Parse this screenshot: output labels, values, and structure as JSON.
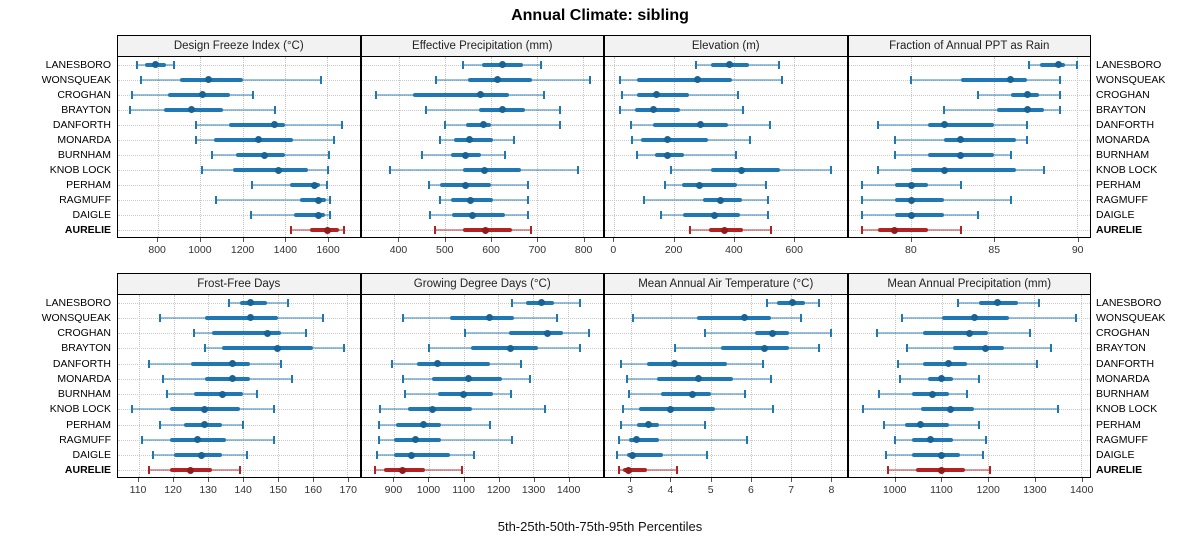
{
  "chart_data": {
    "type": "dot-interval",
    "title": "Annual Climate: sibling",
    "caption": "5th-25th-50th-75th-95th Percentiles",
    "legend_note": "each row shows 5th, 25th, 50th, 75th, 95th percentiles",
    "sites": [
      "LANESBORO",
      "WONSQUEAK",
      "CROGHAN",
      "BRAYTON",
      "DANFORTH",
      "MONARDA",
      "BURNHAM",
      "KNOB LOCK",
      "PERHAM",
      "RAGMUFF",
      "DAIGLE",
      "AURELIE"
    ],
    "emphasis_site": "AURELIE",
    "colors": {
      "series": "#1f77b4",
      "emphasis": "#b22222"
    },
    "grid": true,
    "panels": [
      {
        "title": "Design Freeze Index (°C)",
        "range": [
          612,
          1752
        ],
        "ticks": [
          800,
          1000,
          1200,
          1400,
          1600
        ],
        "values": [
          [
            700,
            740,
            790,
            840,
            875
          ],
          [
            720,
            905,
            1040,
            1200,
            1570
          ],
          [
            680,
            850,
            1010,
            1140,
            1250
          ],
          [
            670,
            830,
            960,
            1110,
            1355
          ],
          [
            980,
            1135,
            1350,
            1400,
            1670
          ],
          [
            980,
            1065,
            1275,
            1440,
            1630
          ],
          [
            1055,
            1170,
            1305,
            1400,
            1610
          ],
          [
            1010,
            1155,
            1370,
            1510,
            1605
          ],
          [
            1245,
            1425,
            1540,
            1565,
            1600
          ],
          [
            1075,
            1470,
            1560,
            1595,
            1615
          ],
          [
            1240,
            1445,
            1560,
            1590,
            1615
          ],
          [
            1430,
            1520,
            1600,
            1655,
            1680
          ]
        ]
      },
      {
        "title": "Effective Precipitation (mm)",
        "range": [
          318,
          844
        ],
        "ticks": [
          400,
          500,
          600,
          700,
          800
        ],
        "values": [
          [
            540,
            580,
            625,
            670,
            710
          ],
          [
            480,
            550,
            615,
            690,
            815
          ],
          [
            350,
            430,
            578,
            640,
            715
          ],
          [
            458,
            575,
            625,
            675,
            750
          ],
          [
            500,
            545,
            583,
            600,
            750
          ],
          [
            490,
            520,
            553,
            605,
            650
          ],
          [
            450,
            513,
            545,
            578,
            630
          ],
          [
            380,
            538,
            586,
            665,
            790
          ],
          [
            466,
            490,
            544,
            600,
            680
          ],
          [
            490,
            513,
            555,
            605,
            680
          ],
          [
            468,
            515,
            560,
            630,
            680
          ],
          [
            478,
            538,
            589,
            645,
            688
          ]
        ]
      },
      {
        "title": "Elevation (m)",
        "range": [
          -31,
          777
        ],
        "ticks": [
          0,
          200,
          400,
          600
        ],
        "values": [
          [
            275,
            325,
            385,
            450,
            550
          ],
          [
            20,
            75,
            280,
            395,
            560
          ],
          [
            25,
            75,
            140,
            250,
            415
          ],
          [
            20,
            70,
            130,
            220,
            430
          ],
          [
            55,
            130,
            290,
            380,
            520
          ],
          [
            58,
            90,
            178,
            315,
            455
          ],
          [
            75,
            135,
            178,
            235,
            408
          ],
          [
            190,
            325,
            427,
            555,
            725
          ],
          [
            170,
            227,
            284,
            410,
            508
          ],
          [
            100,
            298,
            355,
            427,
            515
          ],
          [
            156,
            230,
            337,
            420,
            515
          ],
          [
            255,
            318,
            370,
            432,
            525
          ]
        ]
      },
      {
        "title": "Fraction of Annual PPT as Rain",
        "range": [
          76.2,
          90.8
        ],
        "ticks": [
          80,
          85,
          90
        ],
        "values": [
          [
            87.1,
            87.8,
            88.9,
            89.3,
            90.0
          ],
          [
            80,
            83,
            86,
            87,
            89
          ],
          [
            84,
            86,
            87,
            87.7,
            89
          ],
          [
            82,
            85.2,
            87,
            88,
            89
          ],
          [
            78,
            81,
            82,
            85,
            87
          ],
          [
            79,
            82,
            83,
            86.3,
            87
          ],
          [
            79,
            81,
            83,
            85,
            86
          ],
          [
            78,
            80,
            82,
            86.3,
            88
          ],
          [
            77,
            79,
            80,
            81,
            83
          ],
          [
            77,
            79,
            80,
            82,
            86
          ],
          [
            77,
            79,
            80,
            82,
            84
          ],
          [
            77,
            78,
            79,
            81,
            83
          ]
        ]
      },
      {
        "title": "Frost-Free Days",
        "range": [
          104,
          173.5
        ],
        "ticks": [
          110,
          120,
          130,
          140,
          150,
          160,
          170
        ],
        "values": [
          [
            136,
            139,
            142,
            147,
            153
          ],
          [
            116,
            129,
            142,
            150,
            163
          ],
          [
            126,
            131,
            147,
            151,
            158
          ],
          [
            129,
            134,
            150,
            160,
            169
          ],
          [
            113,
            125,
            137,
            142,
            151
          ],
          [
            117,
            129,
            137,
            142,
            154
          ],
          [
            118,
            126,
            134,
            140,
            144
          ],
          [
            108,
            119,
            129,
            139,
            149
          ],
          [
            116,
            123,
            129,
            134,
            140
          ],
          [
            111,
            119,
            127,
            135,
            149
          ],
          [
            114,
            120,
            128,
            134,
            141
          ],
          [
            113,
            119,
            125,
            131,
            139
          ]
        ]
      },
      {
        "title": "Growing Degree Days (°C)",
        "range": [
          806,
          1501
        ],
        "ticks": [
          900,
          1000,
          1100,
          1200,
          1300,
          1400
        ],
        "values": [
          [
            1240,
            1280,
            1325,
            1360,
            1435
          ],
          [
            925,
            1060,
            1175,
            1245,
            1370
          ],
          [
            1105,
            1230,
            1340,
            1385,
            1460
          ],
          [
            1000,
            1120,
            1235,
            1315,
            1435
          ],
          [
            895,
            965,
            1025,
            1175,
            1265
          ],
          [
            925,
            1010,
            1115,
            1210,
            1290
          ],
          [
            930,
            1025,
            1100,
            1185,
            1235
          ],
          [
            860,
            940,
            1010,
            1125,
            1335
          ],
          [
            855,
            905,
            985,
            1035,
            1175
          ],
          [
            855,
            900,
            960,
            1035,
            1240
          ],
          [
            850,
            900,
            950,
            1060,
            1130
          ],
          [
            845,
            870,
            925,
            990,
            1095
          ]
        ]
      },
      {
        "title": "Mean Annual Air Temperature (°C)",
        "range": [
          2.35,
          8.4
        ],
        "ticks": [
          3,
          4,
          5,
          6,
          7,
          8
        ],
        "values": [
          [
            6.4,
            6.65,
            7.05,
            7.35,
            7.7
          ],
          [
            3.05,
            4.65,
            5.85,
            6.5,
            7.25
          ],
          [
            4.85,
            6.1,
            6.55,
            6.95,
            8.0
          ],
          [
            4.1,
            5.25,
            6.35,
            6.95,
            7.7
          ],
          [
            2.75,
            3.4,
            4.1,
            5.4,
            6.3
          ],
          [
            2.9,
            3.65,
            4.7,
            5.55,
            6.5
          ],
          [
            2.95,
            3.75,
            4.55,
            5.0,
            5.85
          ],
          [
            2.8,
            3.2,
            4.0,
            5.1,
            6.55
          ],
          [
            2.75,
            3.15,
            3.45,
            3.7,
            4.85
          ],
          [
            2.7,
            2.95,
            3.15,
            3.7,
            5.9
          ],
          [
            2.65,
            2.9,
            3.05,
            3.8,
            4.9
          ],
          [
            2.7,
            2.8,
            2.95,
            3.4,
            4.15
          ]
        ]
      },
      {
        "title": "Mean Annual Precipitation (mm)",
        "range": [
          899,
          1420
        ],
        "ticks": [
          1000,
          1100,
          1200,
          1300,
          1400
        ],
        "values": [
          [
            1135,
            1180,
            1220,
            1265,
            1310
          ],
          [
            1015,
            1100,
            1170,
            1245,
            1390
          ],
          [
            960,
            1060,
            1160,
            1200,
            1290
          ],
          [
            1025,
            1125,
            1195,
            1235,
            1335
          ],
          [
            1005,
            1060,
            1115,
            1155,
            1305
          ],
          [
            1010,
            1070,
            1100,
            1125,
            1180
          ],
          [
            965,
            1035,
            1080,
            1115,
            1155
          ],
          [
            930,
            1055,
            1120,
            1170,
            1350
          ],
          [
            975,
            1020,
            1055,
            1115,
            1180
          ],
          [
            1000,
            1035,
            1075,
            1125,
            1195
          ],
          [
            980,
            1035,
            1100,
            1140,
            1190
          ],
          [
            985,
            1045,
            1100,
            1150,
            1205
          ]
        ]
      }
    ]
  }
}
